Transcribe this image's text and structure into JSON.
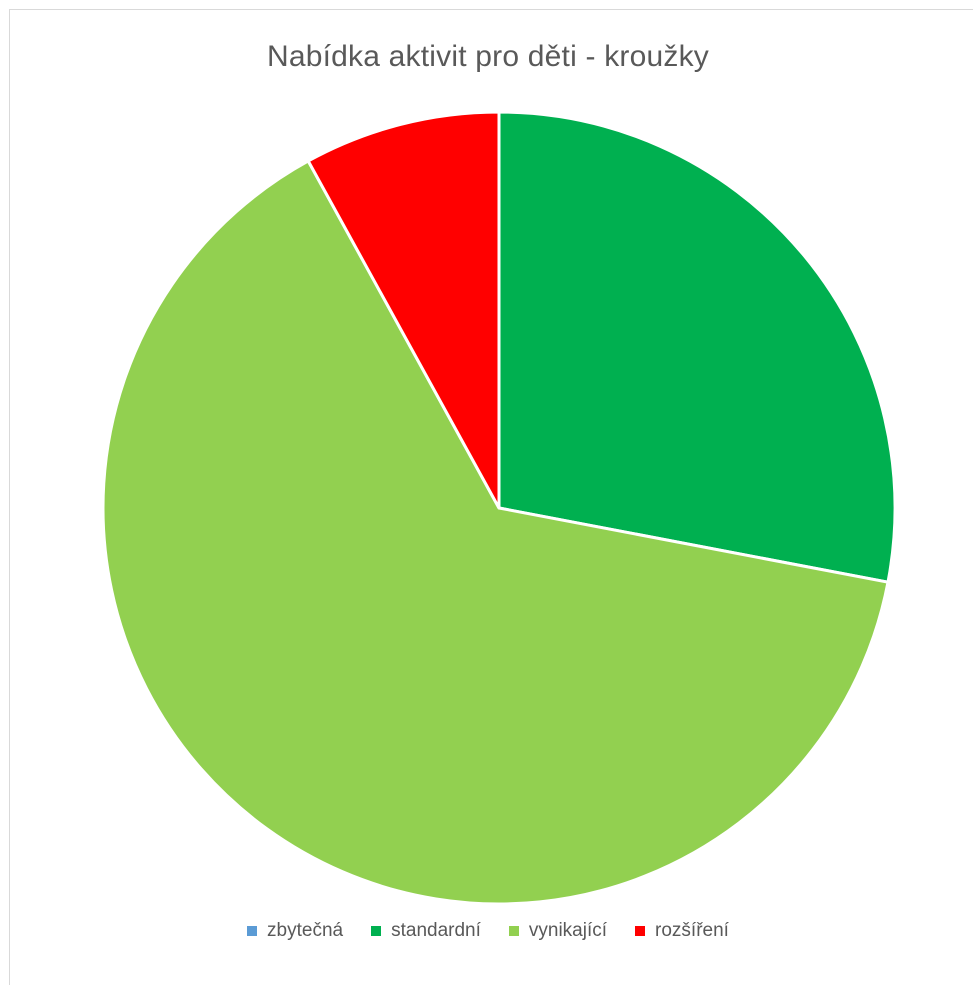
{
  "chart_data": {
    "type": "pie",
    "title": "Nabídka aktivit pro děti - kroužky",
    "categories": [
      "zbytečná",
      "standardní",
      "vynikající",
      "rozšíření"
    ],
    "values": [
      0,
      28,
      64,
      8
    ],
    "colors": [
      "#5b9bd5",
      "#00b050",
      "#92d050",
      "#ff0000"
    ],
    "legend_position": "bottom"
  }
}
